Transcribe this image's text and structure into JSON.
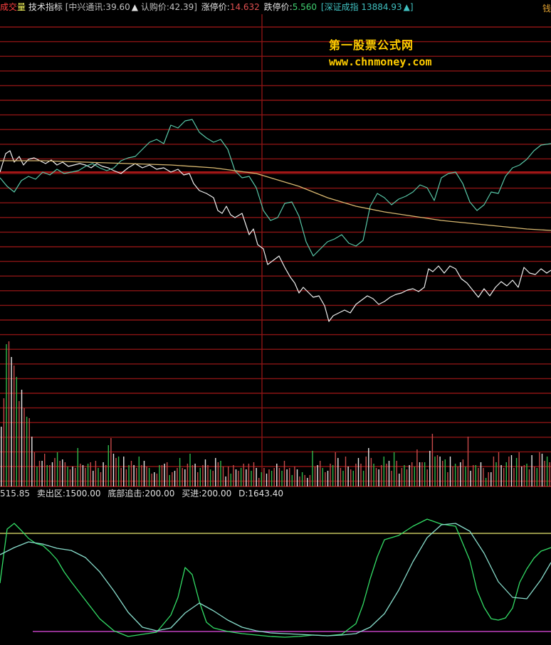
{
  "header": {
    "label_chengjiao_1": "成交",
    "label_chengjiao_2": "量",
    "label_jishu": "技术指标",
    "stock": "[中兴通讯:39.60",
    "stock_arrow": "▲",
    "warrant": "认购价:42.39]",
    "limit_up_label": "涨停价:",
    "limit_up_value": "14.632",
    "limit_down_label": "跌停价:",
    "limit_down_value": "5.560",
    "index": "[深证成指 13884.93",
    "index_arrow": "▲]",
    "edge_char": "钱"
  },
  "watermark": {
    "title": "第一股票公式网",
    "url": "www.chnmoney.com"
  },
  "indicator_bar": {
    "first": "515.85",
    "sell_zone": "卖出区:1500.00",
    "bottom_chase": "底部追击:200.00",
    "buy": "买进:200.00",
    "d_value": "D:1643.40"
  },
  "colors": {
    "grid": "#8a1414",
    "bar_red": "#c84a4a",
    "bar_green": "#2eb84a",
    "bar_white": "#e8e8e8",
    "price_line": "#f0f0f0",
    "index_line": "#58c8a8",
    "avg_line": "#d8b870",
    "osc_main": "#33dd66",
    "osc_slow": "#88ddcc",
    "osc_top_line": "#e8e870",
    "osc_bottom_line": "#c040c0",
    "header_red": "#ff4040",
    "header_green": "#40e080",
    "header_cyan": "#40c0c0",
    "header_white": "#e0e0e0",
    "header_orange": "#e06030"
  },
  "chart_data": [
    {
      "type": "line",
      "series": [
        {
          "role": "price",
          "x": [
            0,
            8,
            14,
            20,
            27,
            33,
            40,
            48,
            56,
            64,
            72,
            80,
            88,
            96,
            104,
            112,
            120,
            128,
            136,
            144,
            152,
            160,
            170,
            180,
            190,
            200,
            210,
            220,
            230,
            240,
            250,
            258,
            266,
            272,
            280,
            290,
            300,
            306,
            312,
            318,
            324,
            330,
            340,
            350,
            356,
            362,
            370,
            376,
            384,
            392,
            400,
            408,
            414,
            420,
            426,
            432,
            440,
            448,
            456,
            462,
            468,
            476,
            484,
            492,
            500,
            508,
            516,
            524,
            532,
            540,
            548,
            556,
            564,
            572,
            580,
            588,
            596,
            602,
            608,
            616,
            624,
            632,
            640,
            648,
            656,
            664,
            672,
            680,
            688,
            696,
            704,
            712,
            720,
            728,
            736,
            744,
            752,
            760,
            768,
            774
          ],
          "y": [
            242,
            216,
            212,
            228,
            220,
            232,
            224,
            222,
            226,
            230,
            225,
            232,
            228,
            234,
            232,
            230,
            232,
            236,
            230,
            234,
            236,
            240,
            244,
            236,
            230,
            236,
            232,
            238,
            236,
            242,
            238,
            246,
            244,
            258,
            268,
            272,
            278,
            296,
            300,
            290,
            302,
            306,
            300,
            330,
            322,
            344,
            350,
            372,
            366,
            360,
            376,
            390,
            398,
            412,
            404,
            410,
            418,
            416,
            430,
            452,
            444,
            440,
            436,
            440,
            428,
            422,
            416,
            420,
            428,
            424,
            418,
            414,
            412,
            408,
            406,
            410,
            404,
            378,
            382,
            374,
            384,
            374,
            378,
            392,
            398,
            408,
            418,
            406,
            416,
            404,
            396,
            402,
            394,
            404,
            376,
            384,
            386,
            378,
            384,
            380
          ]
        },
        {
          "role": "index",
          "x": [
            0,
            10,
            20,
            30,
            40,
            50,
            60,
            70,
            80,
            90,
            100,
            110,
            120,
            130,
            140,
            150,
            160,
            170,
            180,
            190,
            200,
            210,
            220,
            230,
            240,
            250,
            260,
            270,
            280,
            290,
            300,
            310,
            320,
            330,
            340,
            350,
            360,
            370,
            380,
            390,
            400,
            410,
            420,
            430,
            440,
            450,
            460,
            470,
            480,
            490,
            500,
            510,
            520,
            530,
            540,
            550,
            560,
            570,
            580,
            590,
            600,
            610,
            620,
            630,
            640,
            650,
            660,
            670,
            680,
            690,
            700,
            710,
            720,
            730,
            740,
            750,
            760,
            774
          ],
          "y": [
            250,
            262,
            270,
            254,
            248,
            252,
            242,
            246,
            238,
            244,
            242,
            240,
            234,
            230,
            236,
            240,
            236,
            226,
            222,
            220,
            210,
            200,
            196,
            202,
            176,
            180,
            170,
            168,
            186,
            194,
            200,
            196,
            210,
            240,
            250,
            248,
            264,
            296,
            310,
            306,
            286,
            284,
            304,
            340,
            360,
            350,
            340,
            336,
            330,
            342,
            346,
            338,
            290,
            272,
            278,
            288,
            280,
            276,
            270,
            260,
            264,
            282,
            250,
            244,
            242,
            258,
            284,
            296,
            288,
            270,
            272,
            248,
            236,
            232,
            224,
            212,
            204,
            202
          ]
        },
        {
          "role": "average",
          "x": [
            0,
            60,
            120,
            180,
            240,
            300,
            360,
            420,
            460,
            500,
            540,
            580,
            620,
            660,
            700,
            740,
            774
          ],
          "y": [
            226,
            226,
            228,
            230,
            232,
            236,
            244,
            262,
            278,
            290,
            298,
            304,
            310,
            314,
            318,
            322,
            324
          ]
        }
      ]
    },
    {
      "type": "bar",
      "baseline": 0,
      "values": [
        42,
        62,
        100,
        102,
        91,
        85,
        77,
        60,
        68,
        55,
        49,
        48,
        35,
        24,
        14,
        18,
        18,
        23,
        15,
        15,
        17,
        20,
        24,
        18,
        19,
        17,
        14,
        12,
        14,
        13,
        27,
        16,
        15,
        13,
        16,
        17,
        11,
        18,
        13,
        10,
        17,
        15,
        29,
        34,
        23,
        20,
        21,
        13,
        21,
        12,
        15,
        18,
        15,
        13,
        21,
        15,
        18,
        14,
        13,
        9,
        10,
        9,
        15,
        15,
        16,
        17,
        8,
        10,
        11,
        13,
        20,
        13,
        12,
        16,
        23,
        15,
        16,
        10,
        13,
        15,
        19,
        15,
        12,
        11,
        20,
        17,
        18,
        14,
        7,
        14,
        9,
        15,
        12,
        11,
        13,
        16,
        12,
        16,
        11,
        17,
        13,
        6,
        10,
        13,
        9,
        12,
        11,
        13,
        16,
        13,
        11,
        18,
        12,
        13,
        8,
        14,
        12,
        7,
        10,
        8,
        6,
        8,
        25,
        14,
        15,
        18,
        13,
        10,
        11,
        16,
        15,
        24,
        20,
        13,
        11,
        21,
        14,
        12,
        11,
        16,
        20,
        16,
        11,
        21,
        27,
        20,
        16,
        13,
        12,
        15,
        21,
        16,
        18,
        11,
        24,
        18,
        9,
        13,
        15,
        12,
        15,
        17,
        14,
        26,
        17,
        17,
        17,
        12,
        25,
        37,
        21,
        22,
        21,
        18,
        19,
        10,
        21,
        14,
        16,
        14,
        17,
        19,
        14,
        35,
        11,
        15,
        15,
        13,
        17,
        13,
        6,
        10,
        10,
        21,
        17,
        24,
        15,
        13,
        17,
        21,
        22,
        13,
        20,
        24,
        14,
        15,
        16,
        12,
        22,
        14,
        13,
        24,
        23,
        18,
        21,
        17
      ],
      "colors": [
        "w",
        "r",
        "g",
        "r",
        "w",
        "r",
        "g",
        "r",
        "w",
        "r",
        "g",
        "r",
        "w",
        "r",
        "g",
        "r",
        "w",
        "r",
        "g",
        "r",
        "w",
        "r",
        "g",
        "r",
        "w",
        "r",
        "g",
        "r",
        "w",
        "r",
        "g",
        "r",
        "w",
        "r",
        "g",
        "r",
        "w",
        "r",
        "g",
        "r",
        "w",
        "r",
        "g",
        "r",
        "w",
        "r",
        "g",
        "r",
        "w",
        "r",
        "g",
        "r",
        "w",
        "r",
        "g",
        "r",
        "w",
        "r",
        "g",
        "r",
        "w",
        "r",
        "g",
        "r",
        "w",
        "r",
        "g",
        "r",
        "w",
        "r",
        "g",
        "r",
        "w",
        "r",
        "g",
        "r",
        "w",
        "r",
        "g",
        "r",
        "w",
        "r",
        "g",
        "r",
        "w",
        "r",
        "g",
        "r",
        "w",
        "r",
        "g",
        "r",
        "w",
        "r",
        "g",
        "r",
        "w",
        "r",
        "g",
        "r",
        "w",
        "r",
        "g",
        "r",
        "w",
        "r",
        "g",
        "r",
        "w",
        "r",
        "g",
        "r",
        "w",
        "r",
        "g",
        "r",
        "w",
        "r",
        "g",
        "r",
        "w",
        "r",
        "g",
        "r",
        "w",
        "r",
        "g",
        "r",
        "w",
        "r",
        "g",
        "r",
        "w",
        "r",
        "g",
        "r",
        "w",
        "r",
        "g",
        "r",
        "w",
        "r",
        "g",
        "r",
        "w",
        "r",
        "g",
        "r",
        "w",
        "r",
        "g",
        "r",
        "w",
        "r",
        "g",
        "r",
        "w",
        "r",
        "g",
        "r",
        "w",
        "r",
        "g",
        "r",
        "w",
        "r",
        "g",
        "r",
        "w",
        "r",
        "g",
        "r",
        "w",
        "r",
        "g",
        "r",
        "w",
        "r",
        "g",
        "r",
        "w",
        "r",
        "g",
        "r",
        "w",
        "r",
        "g",
        "r",
        "w",
        "r",
        "g",
        "r",
        "w",
        "r",
        "g",
        "r",
        "w",
        "r",
        "g",
        "r",
        "w",
        "r",
        "g",
        "r",
        "w",
        "r",
        "g",
        "r",
        "w",
        "r",
        "g",
        "r",
        "w",
        "r",
        "g",
        "r"
      ]
    },
    {
      "type": "line",
      "levels": {
        "top": 1500,
        "bottom": 200
      },
      "ylim": [
        0,
        1800
      ],
      "series": [
        {
          "role": "fast",
          "x": [
            0,
            10,
            20,
            30,
            40,
            50,
            60,
            70,
            80,
            90,
            100,
            120,
            140,
            160,
            180,
            200,
            220,
            240,
            250,
            260,
            270,
            280,
            290,
            300,
            320,
            340,
            360,
            380,
            400,
            420,
            440,
            460,
            480,
            500,
            510,
            520,
            530,
            540,
            560,
            580,
            600,
            620,
            640,
            660,
            670,
            680,
            690,
            700,
            710,
            720,
            730,
            740,
            750,
            760,
            774
          ],
          "y": [
            800,
            1560,
            1640,
            1540,
            1430,
            1360,
            1330,
            1240,
            1130,
            960,
            820,
            560,
            300,
            130,
            50,
            80,
            110,
            350,
            600,
            1020,
            920,
            540,
            250,
            170,
            120,
            90,
            70,
            50,
            40,
            50,
            70,
            60,
            80,
            230,
            500,
            860,
            1170,
            1410,
            1470,
            1600,
            1700,
            1630,
            1600,
            1120,
            700,
            460,
            300,
            280,
            310,
            450,
            810,
            1000,
            1150,
            1250,
            1300
          ]
        },
        {
          "role": "slow",
          "x": [
            0,
            20,
            40,
            60,
            80,
            100,
            120,
            140,
            160,
            180,
            200,
            220,
            240,
            260,
            280,
            300,
            320,
            340,
            360,
            380,
            400,
            420,
            440,
            460,
            480,
            500,
            520,
            540,
            560,
            580,
            600,
            620,
            640,
            660,
            680,
            700,
            720,
            740,
            760,
            774
          ],
          "y": [
            1200,
            1300,
            1380,
            1350,
            1290,
            1260,
            1160,
            960,
            690,
            390,
            180,
            130,
            170,
            380,
            520,
            410,
            280,
            180,
            130,
            100,
            90,
            80,
            70,
            60,
            70,
            90,
            180,
            370,
            700,
            1100,
            1440,
            1620,
            1640,
            1530,
            1220,
            820,
            600,
            580,
            850,
            1090
          ]
        }
      ]
    }
  ]
}
